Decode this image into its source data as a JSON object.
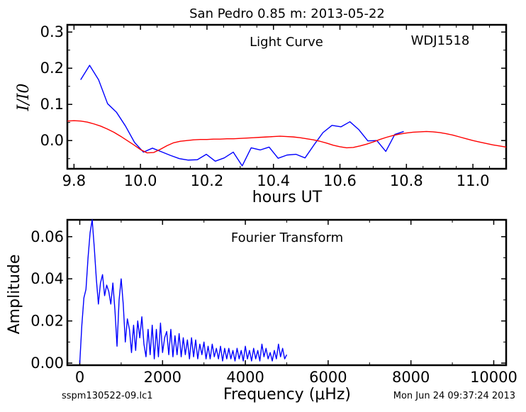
{
  "figure": {
    "title": "San Pedro 0.85 m:  2013-05-22",
    "footer_left": "sspm130522-09.lc1",
    "footer_right": "Mon Jun 24 09:37:24 2013"
  },
  "chart_data": [
    {
      "type": "line",
      "annotations": [
        "Light Curve",
        "WDJ1518"
      ],
      "xlabel": "hours UT",
      "ylabel": "I/I0",
      "xlim": [
        9.78,
        11.1
      ],
      "ylim": [
        -0.078,
        0.32
      ],
      "xticks": [
        "9.8",
        "10.0",
        "10.2",
        "10.4",
        "10.6",
        "10.8",
        "11.0"
      ],
      "xtick_values": [
        9.8,
        10.0,
        10.2,
        10.4,
        10.6,
        10.8,
        11.0
      ],
      "yticks": [
        "0.0",
        "0.1",
        "0.2",
        "0.3"
      ],
      "ytick_values": [
        0.0,
        0.1,
        0.2,
        0.3
      ],
      "grid": false,
      "series": [
        {
          "color": "#0000ff",
          "x": [
            9.82,
            9.847,
            9.874,
            9.901,
            9.928,
            9.955,
            9.982,
            10.009,
            10.036,
            10.063,
            10.09,
            10.117,
            10.144,
            10.171,
            10.198,
            10.225,
            10.252,
            10.279,
            10.306,
            10.333,
            10.36,
            10.387,
            10.414,
            10.441,
            10.468,
            10.495,
            10.522,
            10.549,
            10.576,
            10.603,
            10.63,
            10.657,
            10.684,
            10.711,
            10.738,
            10.765,
            10.792
          ],
          "y": [
            0.168,
            0.208,
            0.168,
            0.102,
            0.078,
            0.04,
            -0.005,
            -0.032,
            -0.021,
            -0.031,
            -0.041,
            -0.05,
            -0.054,
            -0.053,
            -0.038,
            -0.057,
            -0.048,
            -0.032,
            -0.07,
            -0.02,
            -0.026,
            -0.018,
            -0.049,
            -0.04,
            -0.038,
            -0.048,
            -0.012,
            0.022,
            0.042,
            0.038,
            0.052,
            0.03,
            -0.001,
            0.0,
            -0.03,
            0.017,
            0.025
          ]
        },
        {
          "color": "#ff0000",
          "function": "0.055*exp(-((x-9.8)/0.21)^2) - 0.035*exp(-((x-10.03)/0.08)^2) + 0.012*exp(-((x-10.42)/0.09)^2) - 0.02*exp(-((x-10.62)/0.07)^2) + 0.025*exp(-((x-10.85)/0.12)^2) - 0.02*exp(-((x-11.12)/0.1)^2)",
          "x": [
            9.78,
            9.8,
            9.82,
            9.84,
            9.86,
            9.88,
            9.9,
            9.92,
            9.94,
            9.96,
            9.98,
            10.0,
            10.02,
            10.04,
            10.06,
            10.08,
            10.1,
            10.12,
            10.14,
            10.16,
            10.18,
            10.2,
            10.22,
            10.24,
            10.26,
            10.28,
            10.3,
            10.32,
            10.34,
            10.36,
            10.38,
            10.4,
            10.42,
            10.44,
            10.46,
            10.48,
            10.5,
            10.52,
            10.54,
            10.56,
            10.58,
            10.6,
            10.62,
            10.64,
            10.66,
            10.68,
            10.7,
            10.72,
            10.74,
            10.76,
            10.78,
            10.8,
            10.82,
            10.84,
            10.86,
            10.88,
            10.9,
            10.92,
            10.94,
            10.96,
            10.98,
            11.0,
            11.02,
            11.04,
            11.06,
            11.08,
            11.1
          ],
          "y": [
            0.054,
            0.055,
            0.054,
            0.051,
            0.046,
            0.04,
            0.032,
            0.023,
            0.012,
            0.0,
            -0.012,
            -0.025,
            -0.034,
            -0.033,
            -0.024,
            -0.014,
            -0.006,
            -0.002,
            0.0,
            0.002,
            0.003,
            0.003,
            0.004,
            0.004,
            0.005,
            0.005,
            0.006,
            0.007,
            0.008,
            0.009,
            0.01,
            0.011,
            0.012,
            0.011,
            0.01,
            0.008,
            0.005,
            0.002,
            -0.002,
            -0.007,
            -0.013,
            -0.017,
            -0.02,
            -0.019,
            -0.015,
            -0.01,
            -0.004,
            0.003,
            0.009,
            0.014,
            0.018,
            0.021,
            0.023,
            0.024,
            0.025,
            0.024,
            0.022,
            0.019,
            0.015,
            0.01,
            0.005,
            0.0,
            -0.004,
            -0.008,
            -0.012,
            -0.015,
            -0.018
          ]
        }
      ]
    },
    {
      "type": "line",
      "annotations": [
        "Fourier Transform"
      ],
      "xlabel": "Frequency (μHz)",
      "ylabel": "Amplitude",
      "xlim": [
        -300,
        10300
      ],
      "ylim": [
        -0.001,
        0.068
      ],
      "xticks": [
        "0",
        "2000",
        "4000",
        "6000",
        "8000",
        "10000"
      ],
      "xtick_values": [
        0,
        2000,
        4000,
        6000,
        8000,
        10000
      ],
      "yticks": [
        "0.00",
        "0.02",
        "0.04",
        "0.06"
      ],
      "ytick_values": [
        0.0,
        0.02,
        0.04,
        0.06
      ],
      "grid": false,
      "series": [
        {
          "color": "#0000ff",
          "x": [
            0,
            50,
            100,
            150,
            200,
            250,
            300,
            350,
            400,
            450,
            500,
            550,
            600,
            650,
            700,
            750,
            800,
            850,
            900,
            950,
            1000,
            1050,
            1100,
            1150,
            1200,
            1250,
            1300,
            1350,
            1400,
            1450,
            1500,
            1550,
            1600,
            1650,
            1700,
            1750,
            1800,
            1850,
            1900,
            1950,
            2000,
            2050,
            2100,
            2150,
            2200,
            2250,
            2300,
            2350,
            2400,
            2450,
            2500,
            2550,
            2600,
            2650,
            2700,
            2750,
            2800,
            2850,
            2900,
            2950,
            3000,
            3050,
            3100,
            3150,
            3200,
            3250,
            3300,
            3350,
            3400,
            3450,
            3500,
            3550,
            3600,
            3650,
            3700,
            3750,
            3800,
            3850,
            3900,
            3950,
            4000,
            4050,
            4100,
            4150,
            4200,
            4250,
            4300,
            4350,
            4400,
            4450,
            4500,
            4550,
            4600,
            4650,
            4700,
            4750,
            4800,
            4850,
            4900,
            4950,
            5000
          ],
          "y": [
            0.0,
            0.018,
            0.031,
            0.035,
            0.05,
            0.062,
            0.068,
            0.055,
            0.04,
            0.028,
            0.038,
            0.042,
            0.032,
            0.037,
            0.034,
            0.028,
            0.038,
            0.025,
            0.008,
            0.03,
            0.04,
            0.028,
            0.01,
            0.021,
            0.016,
            0.005,
            0.018,
            0.006,
            0.02,
            0.012,
            0.022,
            0.009,
            0.003,
            0.016,
            0.004,
            0.018,
            0.002,
            0.016,
            0.003,
            0.019,
            0.005,
            0.012,
            0.015,
            0.004,
            0.016,
            0.003,
            0.013,
            0.004,
            0.014,
            0.003,
            0.012,
            0.004,
            0.011,
            0.002,
            0.012,
            0.003,
            0.011,
            0.002,
            0.009,
            0.004,
            0.01,
            0.002,
            0.008,
            0.002,
            0.009,
            0.003,
            0.007,
            0.002,
            0.008,
            0.001,
            0.007,
            0.002,
            0.007,
            0.002,
            0.006,
            0.001,
            0.007,
            0.002,
            0.006,
            0.001,
            0.008,
            0.002,
            0.006,
            0.001,
            0.007,
            0.002,
            0.006,
            0.001,
            0.009,
            0.003,
            0.007,
            0.002,
            0.005,
            0.001,
            0.006,
            0.002,
            0.009,
            0.003,
            0.007,
            0.002,
            0.004
          ]
        }
      ]
    }
  ]
}
